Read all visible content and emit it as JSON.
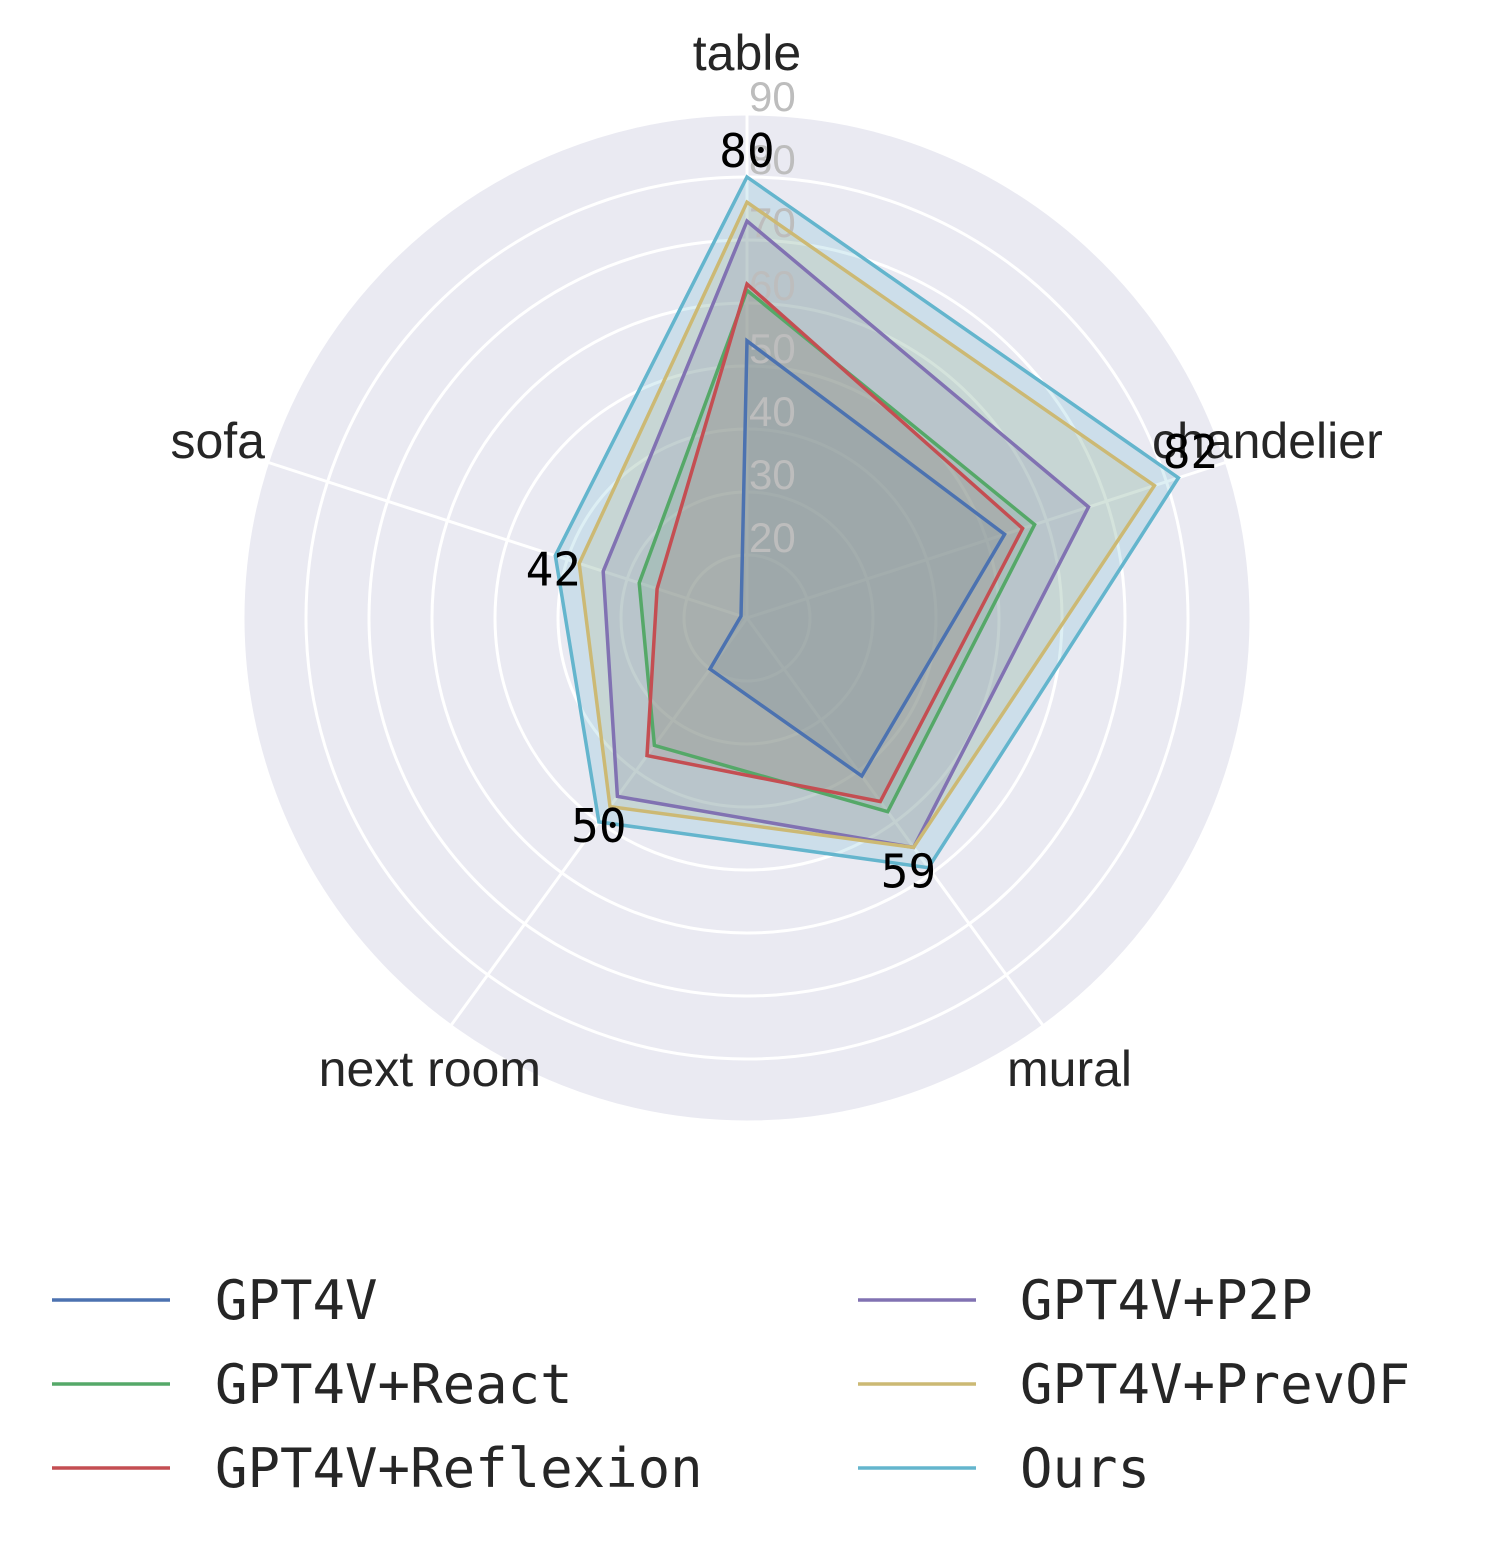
{
  "chart_data": {
    "type": "radar",
    "categories": [
      "table",
      "chandelier",
      "mural",
      "next room",
      "sofa"
    ],
    "rlim": [
      10,
      90
    ],
    "rticks": [
      20,
      30,
      40,
      50,
      60,
      70,
      80,
      90
    ],
    "tick_labels": [
      "20",
      "30",
      "40",
      "50",
      "60",
      "70",
      "80",
      "90"
    ],
    "grid": true,
    "legend_position": "bottom",
    "series": [
      {
        "name": "GPT4V",
        "values": [
          54,
          53,
          41,
          20,
          11
        ],
        "color": "#4c72b0"
      },
      {
        "name": "GPT4V+React",
        "values": [
          62,
          58,
          48,
          35,
          28
        ],
        "color": "#55a868"
      },
      {
        "name": "GPT4V+Reflexion",
        "values": [
          63,
          56,
          46,
          37,
          25
        ],
        "color": "#c44e52"
      },
      {
        "name": "GPT4V+P2P",
        "values": [
          73,
          67,
          55,
          45,
          34
        ],
        "color": "#8172b2"
      },
      {
        "name": "GPT4V+PrevOF",
        "values": [
          76,
          78,
          55,
          47,
          38
        ],
        "color": "#ccb974"
      },
      {
        "name": "Ours",
        "values": [
          80,
          82,
          59,
          50,
          42
        ],
        "color": "#64b5cd"
      }
    ],
    "annotations": [
      {
        "text": "80",
        "category": "table",
        "value": 80
      },
      {
        "text": "82",
        "category": "chandelier",
        "value": 82
      },
      {
        "text": "59",
        "category": "mural",
        "value": 59
      },
      {
        "text": "50",
        "category": "next room",
        "value": 50
      },
      {
        "text": "42",
        "category": "sofa",
        "value": 42
      }
    ]
  }
}
